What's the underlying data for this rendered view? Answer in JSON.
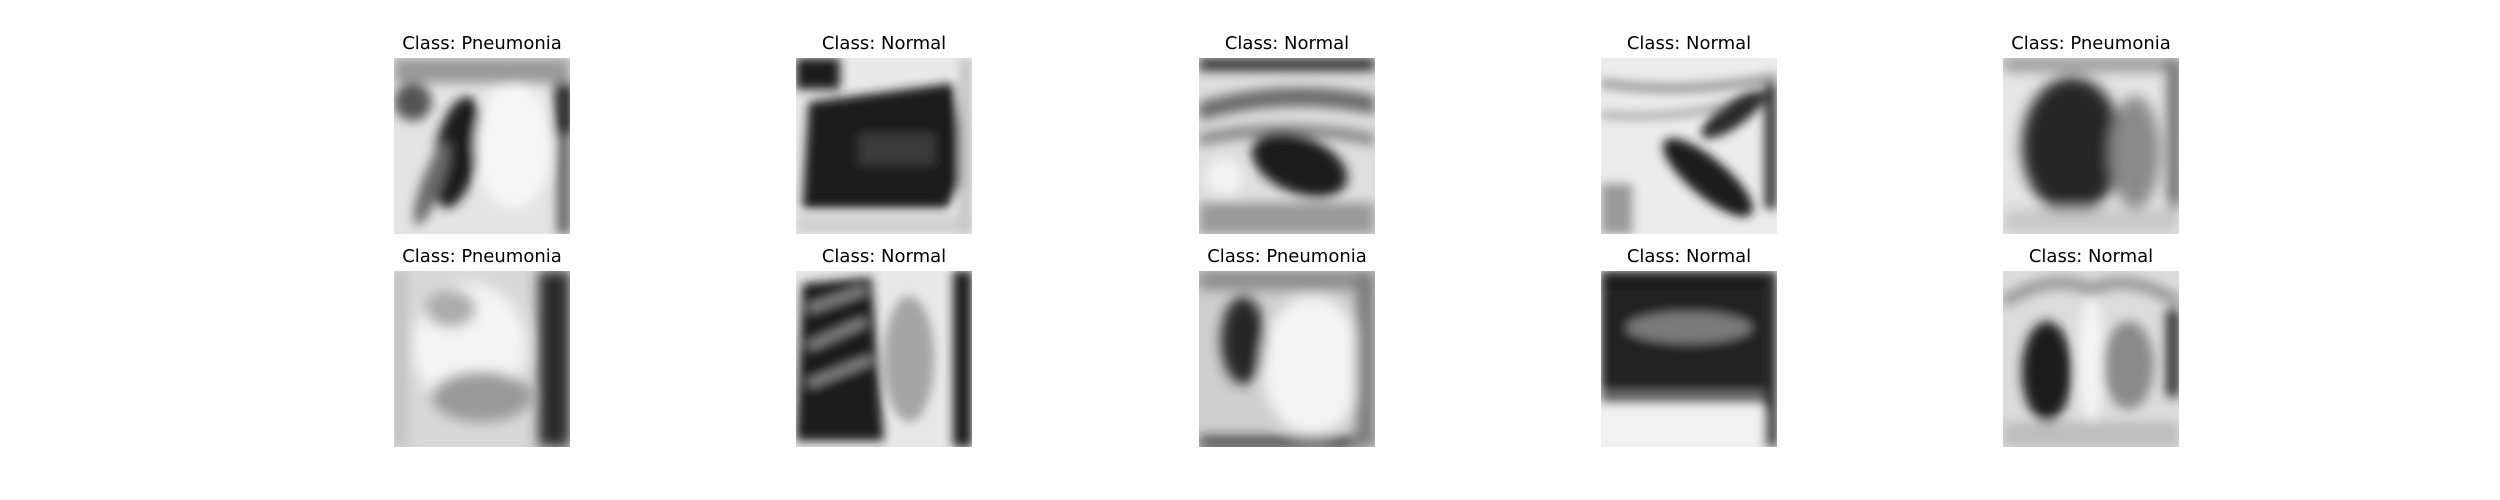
{
  "figure": {
    "panels": [
      {
        "title": "Class: Pneumonia",
        "image": "chest-xray-thumbnail"
      },
      {
        "title": "Class: Normal",
        "image": "chest-xray-thumbnail"
      },
      {
        "title": "Class: Normal",
        "image": "chest-xray-thumbnail"
      },
      {
        "title": "Class: Normal",
        "image": "chest-xray-thumbnail"
      },
      {
        "title": "Class: Pneumonia",
        "image": "chest-xray-thumbnail"
      },
      {
        "title": "Class: Pneumonia",
        "image": "chest-xray-thumbnail"
      },
      {
        "title": "Class: Normal",
        "image": "chest-xray-thumbnail"
      },
      {
        "title": "Class: Pneumonia",
        "image": "chest-xray-thumbnail"
      },
      {
        "title": "Class: Normal",
        "image": "chest-xray-thumbnail"
      },
      {
        "title": "Class: Normal",
        "image": "chest-xray-thumbnail"
      }
    ]
  }
}
